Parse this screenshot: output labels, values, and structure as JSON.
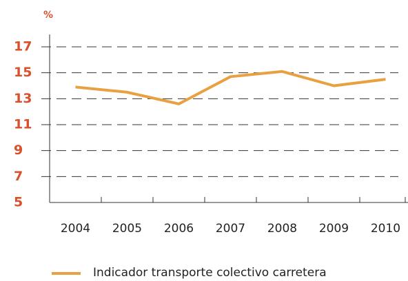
{
  "chart_data": {
    "type": "line",
    "y_unit": "%",
    "categories": [
      "2004",
      "2005",
      "2006",
      "2007",
      "2008",
      "2009",
      "2010"
    ],
    "series": [
      {
        "name": "Indicador transporte colectivo carretera",
        "color": "#e8a040",
        "values": [
          13.9,
          13.5,
          12.6,
          14.7,
          15.1,
          14.0,
          14.5
        ]
      }
    ],
    "ylim": [
      5,
      17
    ],
    "yticks": [
      5,
      7,
      9,
      11,
      13,
      15,
      17
    ],
    "grid": true
  }
}
